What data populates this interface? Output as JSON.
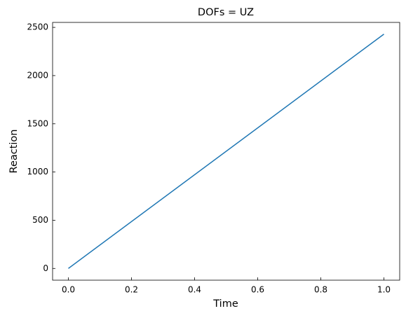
{
  "chart_data": {
    "type": "line",
    "title": "DOFs = UZ",
    "x_label": "Time",
    "y_label": "Reaction",
    "x": [
      0.0,
      1.0
    ],
    "series": [
      {
        "name": "Reaction",
        "color": "#1f77b4",
        "values": [
          0,
          2430
        ]
      }
    ],
    "xlim": [
      -0.05,
      1.05
    ],
    "ylim": [
      -121.5,
      2551.5
    ],
    "xticks": [
      {
        "value": 0.0,
        "label": "0.0"
      },
      {
        "value": 0.2,
        "label": "0.2"
      },
      {
        "value": 0.4,
        "label": "0.4"
      },
      {
        "value": 0.6,
        "label": "0.6"
      },
      {
        "value": 0.8,
        "label": "0.8"
      },
      {
        "value": 1.0,
        "label": "1.0"
      }
    ],
    "yticks": [
      0,
      500,
      1000,
      1500,
      2000,
      2500
    ],
    "grid": false
  }
}
